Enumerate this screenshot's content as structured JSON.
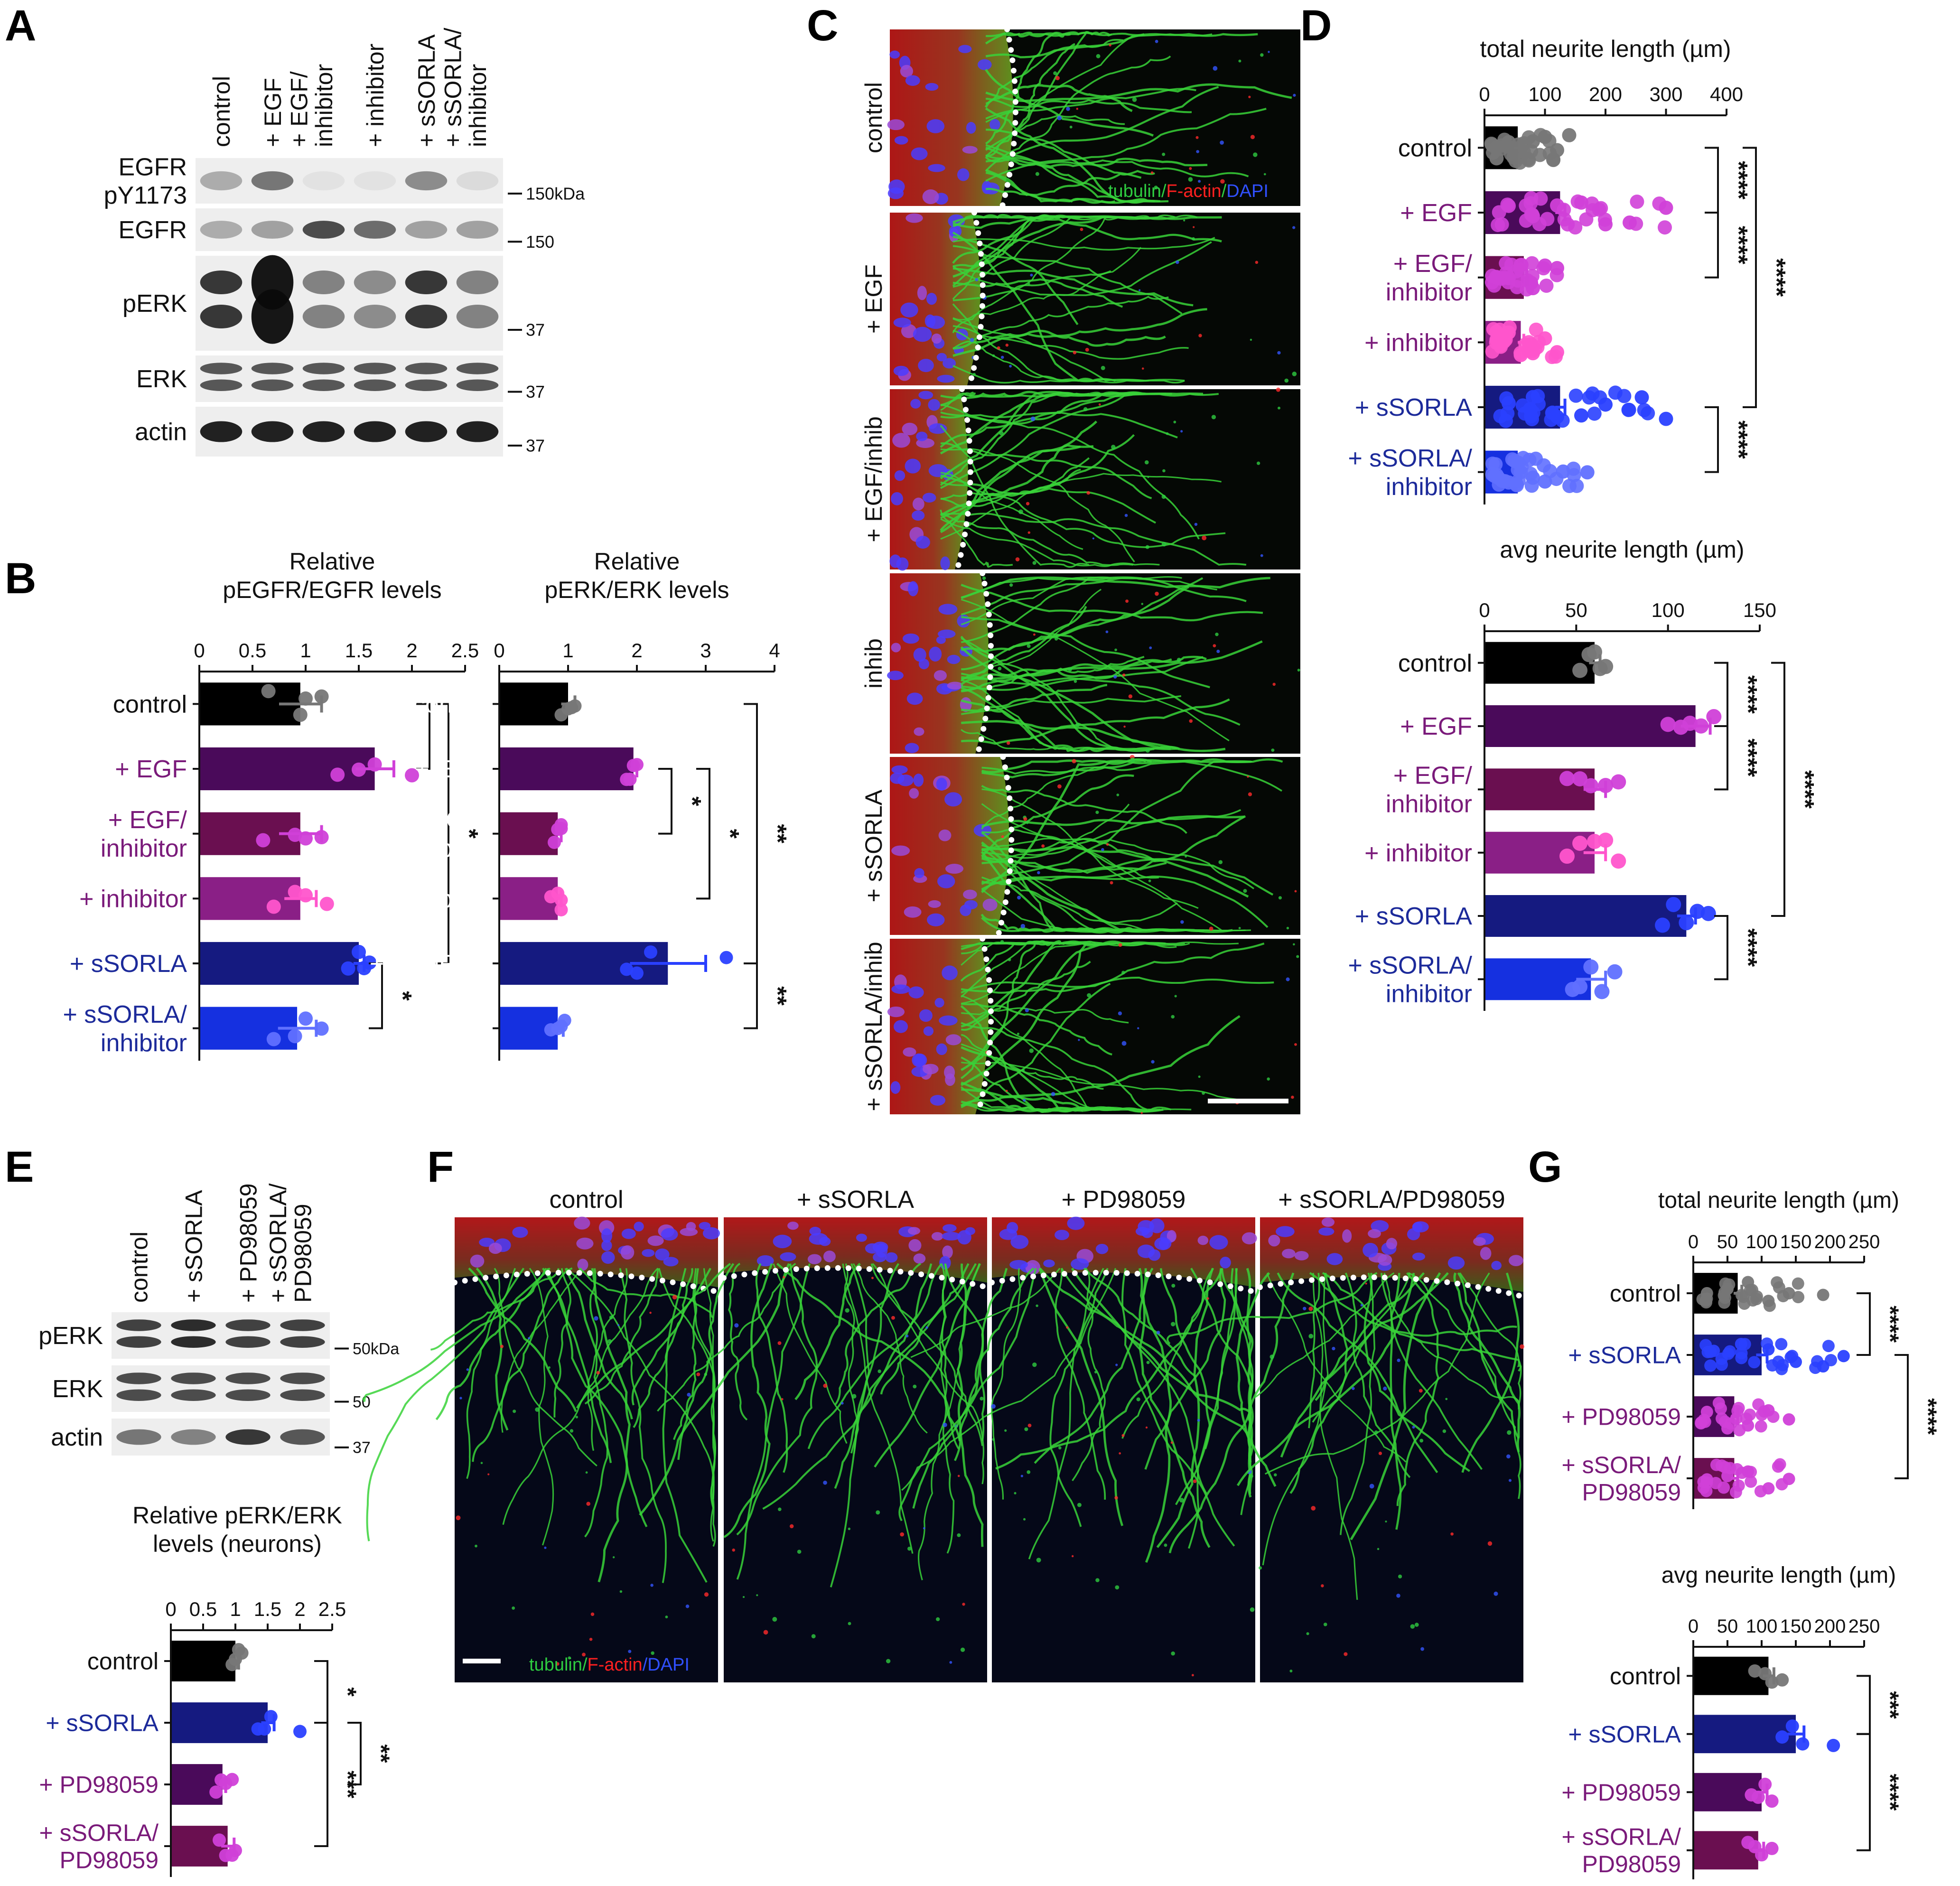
{
  "panels": {
    "A": {
      "label": "A",
      "lanes": [
        "control",
        "+ EGF",
        "+ EGF/\ninhibitor",
        "+ inhibitor",
        "+ sSORLA",
        "+ sSORLA/\ninhibitor"
      ],
      "blots": [
        {
          "name": "EGFR\npY1173",
          "marker": "150kDa",
          "intensities": [
            0.3,
            0.55,
            0.05,
            0.05,
            0.45,
            0.08
          ],
          "bands": 1
        },
        {
          "name": "EGFR",
          "marker": "150",
          "intensities": [
            0.3,
            0.35,
            0.75,
            0.6,
            0.35,
            0.35
          ],
          "bands": 1
        },
        {
          "name": "pERK",
          "marker": "37",
          "intensities": [
            0.85,
            1.0,
            0.5,
            0.45,
            0.85,
            0.5
          ],
          "bands": 2
        },
        {
          "name": "ERK",
          "marker": "37",
          "intensities": [
            0.7,
            0.7,
            0.7,
            0.7,
            0.7,
            0.7
          ],
          "bands": 2
        },
        {
          "name": "actin",
          "marker": "37",
          "intensities": [
            0.95,
            0.95,
            0.95,
            0.95,
            0.95,
            0.95
          ],
          "bands": 1
        }
      ]
    },
    "B": {
      "label": "B"
    },
    "C": {
      "label": "C",
      "rows": [
        "control",
        "+ EGF",
        "+ EGF/inhib",
        "inhib",
        "+ sSORLA",
        "+ sSORLA/inhib"
      ],
      "legend": [
        {
          "text": "tubulin",
          "color": "#2ecc40"
        },
        {
          "text": "/",
          "color": "#2ecc40"
        },
        {
          "text": "F-actin",
          "color": "#ff2020"
        },
        {
          "text": "/",
          "color": "#2ecc40"
        },
        {
          "text": "DAPI",
          "color": "#3050ff"
        }
      ]
    },
    "D": {
      "label": "D"
    },
    "E": {
      "label": "E",
      "lanes": [
        "control",
        "+ sSORLA",
        "+ PD98059",
        "+ sSORLA/\nPD98059"
      ],
      "blots": [
        {
          "name": "pERK",
          "marker": "50kDa",
          "intensities": [
            0.8,
            0.9,
            0.8,
            0.8
          ],
          "bands": 2
        },
        {
          "name": "ERK",
          "marker": "50",
          "intensities": [
            0.75,
            0.75,
            0.75,
            0.75
          ],
          "bands": 2
        },
        {
          "name": "actin",
          "marker": "37",
          "intensities": [
            0.55,
            0.5,
            0.85,
            0.7
          ],
          "bands": 1
        }
      ]
    },
    "F": {
      "label": "F",
      "columns": [
        "control",
        "+ sSORLA",
        "+ PD98059",
        "+ sSORLA/PD98059"
      ],
      "legend": [
        {
          "text": "tubulin",
          "color": "#2ecc40"
        },
        {
          "text": "/",
          "color": "#2ecc40"
        },
        {
          "text": "F-actin",
          "color": "#ff2020"
        },
        {
          "text": "/",
          "color": "#3050ff"
        },
        {
          "text": "DAPI",
          "color": "#3050ff"
        }
      ]
    },
    "G": {
      "label": "G"
    }
  },
  "colors": {
    "black": "#000000",
    "dark_purple": "#4a0a5a",
    "wine": "#6a0f50",
    "purple": "#8a1f86",
    "navy": "#151a80",
    "blue": "#1530e0",
    "grey_dot": "#777777",
    "magenta_dot": "#d040d8",
    "pink_dot": "#ff55cc",
    "blue_dot": "#2a40ff",
    "light_blue_dot": "#6070ff",
    "label_purple": "#7a1a7a",
    "label_navy": "#1c2a9a"
  },
  "chart_data": [
    {
      "id": "B-left",
      "type": "bar",
      "orientation": "horizontal",
      "title": "Relative\npEGFR/EGFR levels",
      "categories": [
        "control",
        "+ EGF",
        "+ EGF/\ninhibitor",
        "+ inhibitor",
        "+ sSORLA",
        "+ sSORLA/\ninhibitor"
      ],
      "values": [
        0.95,
        1.65,
        0.95,
        0.95,
        1.5,
        0.92
      ],
      "errors": [
        0.2,
        0.18,
        0.2,
        0.15,
        0.05,
        0.18
      ],
      "xlim": [
        0,
        2.5
      ],
      "xticks": [
        "0",
        "0.5",
        "1",
        "1.5",
        "2",
        "2.5"
      ],
      "points": [
        [
          0.65,
          0.95,
          1.0,
          1.15
        ],
        [
          1.3,
          1.5,
          1.65,
          2.0
        ],
        [
          0.6,
          0.9,
          1.0,
          1.15
        ],
        [
          0.7,
          0.9,
          1.0,
          1.2
        ],
        [
          1.4,
          1.5,
          1.55,
          1.6
        ],
        [
          0.7,
          0.9,
          1.0,
          1.15
        ]
      ],
      "brackets": [
        {
          "from": 0,
          "to": 1,
          "label": ""
        },
        {
          "from": 0,
          "to": 4,
          "label": "*"
        },
        {
          "from": 4,
          "to": 5,
          "label": "*"
        }
      ]
    },
    {
      "id": "B-right",
      "type": "bar",
      "orientation": "horizontal",
      "title": "Relative\npERK/ERK levels",
      "categories": [
        "control",
        "+ EGF",
        "+ EGF/\ninhibitor",
        "+ inhibitor",
        "+ sSORLA",
        "+ sSORLA/\ninhibitor"
      ],
      "values": [
        1.0,
        1.95,
        0.85,
        0.85,
        2.45,
        0.85
      ],
      "errors": [
        0.1,
        0.05,
        0.05,
        0.05,
        0.55,
        0.08
      ],
      "xlim": [
        0,
        4
      ],
      "xticks": [
        "0",
        "1",
        "2",
        "3",
        "4"
      ],
      "points": [
        [
          0.9,
          1.0,
          1.05,
          1.1
        ],
        [
          1.85,
          1.9,
          1.95,
          2.0
        ],
        [
          0.8,
          0.85,
          0.9,
          0.9
        ],
        [
          0.75,
          0.85,
          0.9,
          0.9
        ],
        [
          1.85,
          2.0,
          2.2,
          3.3
        ],
        [
          0.75,
          0.85,
          0.9,
          0.95
        ]
      ],
      "brackets": [
        {
          "from": 1,
          "to": 2,
          "label": "*"
        },
        {
          "from": 1,
          "to": 3,
          "label": "*"
        },
        {
          "from": 0,
          "to": 4,
          "label": "**"
        },
        {
          "from": 4,
          "to": 5,
          "label": "**"
        }
      ]
    },
    {
      "id": "D-top",
      "type": "bar",
      "orientation": "horizontal",
      "title": "total neurite length (µm)",
      "categories": [
        "control",
        "+ EGF",
        "+ EGF/\ninhibitor",
        "+ inhibitor",
        "+ sSORLA",
        "+ sSORLA/\ninhibitor"
      ],
      "values": [
        55,
        125,
        65,
        60,
        125,
        55
      ],
      "errors": [
        6,
        8,
        5,
        5,
        8,
        5
      ],
      "xlim": [
        0,
        400
      ],
      "xticks": [
        "0",
        "100",
        "200",
        "300",
        "400"
      ],
      "points": [
        [
          20,
          40,
          60,
          80,
          100,
          120,
          140
        ],
        [
          40,
          80,
          120,
          160,
          200,
          240,
          300
        ],
        [
          20,
          40,
          60,
          80,
          100,
          120
        ],
        [
          20,
          40,
          60,
          80,
          100,
          120
        ],
        [
          40,
          80,
          120,
          160,
          200,
          260,
          300
        ],
        [
          20,
          40,
          60,
          80,
          100,
          130,
          170
        ]
      ],
      "brackets": [
        {
          "from": 0,
          "to": 1,
          "label": "****"
        },
        {
          "from": 1,
          "to": 2,
          "label": "****"
        },
        {
          "from": 0,
          "to": 4,
          "label": "****"
        },
        {
          "from": 4,
          "to": 5,
          "label": "****"
        }
      ]
    },
    {
      "id": "D-bottom",
      "type": "bar",
      "orientation": "horizontal",
      "title": "avg neurite length (µm)",
      "categories": [
        "control",
        "+ EGF",
        "+ EGF/\ninhibitor",
        "+ inhibitor",
        "+ sSORLA",
        "+ sSORLA/\ninhibitor"
      ],
      "values": [
        60,
        115,
        60,
        60,
        110,
        58
      ],
      "errors": [
        3,
        8,
        6,
        6,
        5,
        8
      ],
      "xlim": [
        0,
        150
      ],
      "xticks": [
        "0",
        "50",
        "100",
        "150"
      ],
      "points": [
        [
          52,
          57,
          60,
          63,
          66
        ],
        [
          100,
          107,
          112,
          118,
          125
        ],
        [
          45,
          52,
          58,
          66,
          73
        ],
        [
          45,
          52,
          60,
          66,
          73
        ],
        [
          97,
          103,
          110,
          116,
          122
        ],
        [
          48,
          52,
          58,
          64,
          71
        ]
      ],
      "brackets": [
        {
          "from": 0,
          "to": 1,
          "label": "****"
        },
        {
          "from": 1,
          "to": 2,
          "label": "****"
        },
        {
          "from": 0,
          "to": 4,
          "label": "****"
        },
        {
          "from": 4,
          "to": 5,
          "label": "****"
        }
      ]
    },
    {
      "id": "E-chart",
      "type": "bar",
      "orientation": "horizontal",
      "title": "Relative pERK/ERK\nlevels (neurons)",
      "categories": [
        "control",
        "+ sSORLA",
        "+ PD98059",
        "+ sSORLA/\nPD98059"
      ],
      "values": [
        1.0,
        1.5,
        0.8,
        0.88
      ],
      "errors": [
        0.05,
        0.1,
        0.05,
        0.1
      ],
      "xlim": [
        0,
        2.5
      ],
      "xticks": [
        "0",
        "0.5",
        "1",
        "1.5",
        "2",
        "2.5"
      ],
      "points": [
        [
          0.95,
          1.0,
          1.05,
          1.1
        ],
        [
          1.35,
          1.45,
          1.55,
          2.0
        ],
        [
          0.7,
          0.78,
          0.85,
          0.95
        ],
        [
          0.75,
          0.85,
          0.95,
          1.0
        ]
      ],
      "brackets": [
        {
          "from": 0,
          "to": 1,
          "label": "*"
        },
        {
          "from": 1,
          "to": 3,
          "label": "***"
        },
        {
          "from": 1,
          "to": 2,
          "label": "**"
        }
      ]
    },
    {
      "id": "G-top",
      "type": "bar",
      "orientation": "horizontal",
      "title": "total neurite length (µm)",
      "categories": [
        "control",
        "+ sSORLA",
        "+ PD98059",
        "+ sSORLA/\nPD98059"
      ],
      "values": [
        65,
        100,
        60,
        60
      ],
      "errors": [
        6,
        8,
        5,
        5
      ],
      "xlim": [
        0,
        250
      ],
      "xticks": [
        "0",
        "50",
        "100",
        "150",
        "200",
        "250"
      ],
      "points": [
        [
          20,
          50,
          80,
          110,
          140,
          190
        ],
        [
          30,
          70,
          110,
          150,
          190,
          220
        ],
        [
          20,
          50,
          80,
          110,
          140
        ],
        [
          20,
          50,
          80,
          110,
          140
        ]
      ],
      "brackets": [
        {
          "from": 0,
          "to": 1,
          "label": "****"
        },
        {
          "from": 1,
          "to": 3,
          "label": "****"
        }
      ]
    },
    {
      "id": "G-bottom",
      "type": "bar",
      "orientation": "horizontal",
      "title": "avg neurite length (µm)",
      "categories": [
        "control",
        "+ sSORLA",
        "+ PD98059",
        "+ sSORLA/\nPD98059"
      ],
      "values": [
        110,
        150,
        100,
        95
      ],
      "errors": [
        8,
        12,
        8,
        8
      ],
      "xlim": [
        0,
        250
      ],
      "xticks": [
        "0",
        "50",
        "100",
        "150",
        "200",
        "250"
      ],
      "points": [
        [
          90,
          105,
          115,
          130
        ],
        [
          130,
          145,
          160,
          205
        ],
        [
          85,
          95,
          105,
          115
        ],
        [
          80,
          90,
          100,
          115
        ]
      ],
      "brackets": [
        {
          "from": 0,
          "to": 1,
          "label": "***"
        },
        {
          "from": 1,
          "to": 3,
          "label": "****"
        }
      ]
    }
  ]
}
